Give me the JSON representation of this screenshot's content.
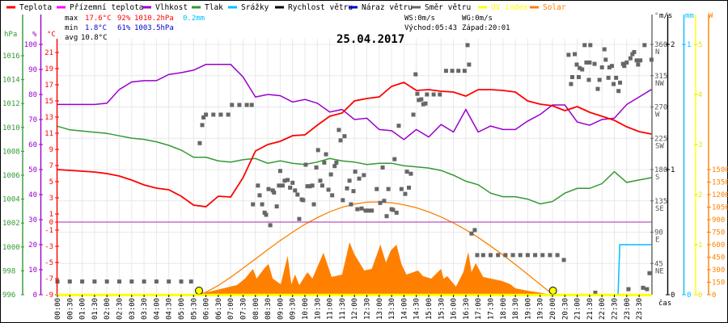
{
  "legend": [
    {
      "label": "Teplota",
      "color": "#ff0000"
    },
    {
      "label": "Přízemní teplota",
      "color": "#ff00ff"
    },
    {
      "label": "Vlhkost",
      "color": "#9900cc"
    },
    {
      "label": "Tlak",
      "color": "#339933"
    },
    {
      "label": "Srážky",
      "color": "#00bfff"
    },
    {
      "label": "Rychlost větru",
      "color": "#000000"
    },
    {
      "label": "Náraz větru",
      "color": "#0000cc"
    },
    {
      "label": "Směr větru",
      "color": "#666666"
    },
    {
      "label": "UV index",
      "color": "#ffff00"
    },
    {
      "label": "Solar",
      "color": "#ff8000"
    }
  ],
  "stats": {
    "max_label": "max",
    "max_temp": "17.6°C",
    "max_hum": "92%",
    "max_press": "1010.2hPa",
    "max_rain": "0.2mm",
    "min_label": "min",
    "min_temp": "1.8°C",
    "min_hum": "61%",
    "min_press": "1003.5hPa",
    "avg_label": "avg",
    "avg_temp": "10.8°C",
    "ws": "WS:0m/s",
    "wg": "WG:0m/s",
    "sunrise": "Východ:05:43",
    "sunset": "Západ:20:01"
  },
  "chart_data": {
    "type": "line",
    "title": "25.04.2017",
    "xlabel": "čas",
    "x_ticks": [
      "00:00",
      "00:30",
      "01:00",
      "01:30",
      "02:00",
      "02:30",
      "03:00",
      "03:30",
      "04:00",
      "04:30",
      "05:00",
      "05:30",
      "06:00",
      "06:30",
      "07:00",
      "07:30",
      "08:00",
      "08:30",
      "09:00",
      "09:30",
      "10:00",
      "10:30",
      "11:00",
      "11:30",
      "12:00",
      "12:30",
      "13:00",
      "13:30",
      "14:00",
      "14:30",
      "15:00",
      "15:30",
      "16:00",
      "16:30",
      "17:00",
      "17:30",
      "18:00",
      "18:30",
      "19:00",
      "19:30",
      "20:00",
      "20:30",
      "21:00",
      "21:30",
      "22:00",
      "22:30",
      "23:00",
      "23:30"
    ],
    "xlim_hours": [
      0,
      24
    ],
    "axes": {
      "pressure": {
        "label": "hPa",
        "ticks": [
          996,
          998,
          1000,
          1002,
          1004,
          1006,
          1008,
          1010,
          1012,
          1014,
          1016
        ],
        "range": [
          996,
          1016.9
        ]
      },
      "humidity": {
        "label": "%",
        "ticks": [
          0,
          10,
          20,
          30,
          40,
          50,
          60,
          70,
          80,
          90,
          100
        ],
        "range": [
          0,
          100
        ]
      },
      "temperature": {
        "label": "°C",
        "ticks": [
          -9,
          -7,
          -5,
          -3,
          -1,
          0,
          1,
          3,
          5,
          7,
          9,
          11,
          13,
          15,
          17,
          19,
          21
        ],
        "range": [
          -9,
          22
        ]
      },
      "direction": {
        "label": "°",
        "ticks": [
          [
            "45",
            "NE"
          ],
          [
            "90",
            "E"
          ],
          [
            "135",
            "SE"
          ],
          [
            "180",
            "S"
          ],
          [
            "225",
            "SW"
          ],
          [
            "270",
            "W"
          ],
          [
            "315",
            "NW"
          ],
          [
            "360",
            "N"
          ]
        ],
        "range": [
          0,
          360
        ]
      },
      "wind": {
        "label": "m/s",
        "ticks": [
          0,
          1,
          2
        ],
        "range": [
          0,
          2
        ]
      },
      "rain": {
        "label": "mm",
        "ticks": [
          0,
          1
        ],
        "range": [
          0,
          1
        ]
      },
      "uv": {
        "label": "",
        "ticks": [
          0,
          1,
          2,
          3,
          4,
          5
        ],
        "range": [
          0,
          5
        ]
      },
      "solar": {
        "label": "W",
        "ticks": [
          0,
          150,
          300,
          450,
          600,
          750,
          900,
          1050,
          1200,
          1350,
          1500
        ],
        "range": [
          0,
          3000
        ]
      }
    },
    "series": {
      "temperature": [
        6.5,
        6.4,
        6.3,
        6.2,
        6.0,
        5.7,
        5.2,
        4.6,
        4.2,
        4.0,
        3.2,
        2.1,
        1.9,
        3.2,
        3.1,
        5.5,
        8.8,
        9.6,
        10.0,
        10.7,
        10.8,
        12.0,
        13.1,
        13.5,
        15.0,
        15.3,
        15.5,
        16.8,
        17.3,
        16.3,
        16.4,
        16.2,
        16.1,
        15.6,
        16.4,
        16.4,
        16.3,
        16.1,
        15.0,
        14.6,
        14.4,
        13.8,
        14.3,
        13.6,
        13.1,
        12.6,
        11.8,
        11.2,
        10.9
      ],
      "ground_temperature": [
        [
          0,
          0
        ],
        [
          24,
          0
        ]
      ],
      "humidity": [
        76,
        76,
        76,
        76,
        76.5,
        82,
        85,
        85.5,
        85.5,
        88,
        88.7,
        89.7,
        92,
        92,
        92,
        87,
        79,
        80,
        79.5,
        77,
        78,
        76.5,
        73,
        74,
        70,
        70.5,
        66,
        65.5,
        62,
        66,
        63,
        68,
        65,
        74,
        65,
        67.4,
        66,
        66,
        69.4,
        72,
        75.8,
        75.8,
        69,
        67.7,
        70,
        70.5,
        76,
        79,
        82
      ],
      "pressure": [
        1010.1,
        1009.8,
        1009.7,
        1009.6,
        1009.5,
        1009.3,
        1009.1,
        1009.0,
        1008.8,
        1008.5,
        1008.1,
        1007.5,
        1007.5,
        1007.2,
        1007.1,
        1007.3,
        1007.4,
        1007.0,
        1007.2,
        1007.0,
        1006.9,
        1007.1,
        1007.4,
        1007.2,
        1007.1,
        1006.9,
        1007.0,
        1007.0,
        1006.8,
        1006.7,
        1006.6,
        1006.4,
        1006.0,
        1005.5,
        1005.2,
        1004.5,
        1004.2,
        1004.2,
        1004.0,
        1003.6,
        1003.8,
        1004.5,
        1004.9,
        1004.9,
        1005.3,
        1006.3,
        1005.4,
        1005.6,
        1005.8
      ],
      "rain": [
        [
          0,
          0
        ],
        [
          22.65,
          0
        ],
        [
          22.72,
          0.2
        ],
        [
          24,
          0.2
        ]
      ],
      "wind_speed": [
        [
          0,
          0
        ],
        [
          24,
          0
        ]
      ],
      "wind_gust": [
        [
          0,
          0
        ],
        [
          24,
          0
        ]
      ],
      "uv_index": [
        [
          0,
          0
        ],
        [
          24,
          0
        ]
      ],
      "solar": [
        [
          5.75,
          0
        ],
        [
          5.85,
          15
        ],
        [
          7.25,
          116
        ],
        [
          7.58,
          194
        ],
        [
          7.9,
          310
        ],
        [
          8.05,
          194
        ],
        [
          8.37,
          320
        ],
        [
          8.53,
          368
        ],
        [
          8.7,
          194
        ],
        [
          9.02,
          126
        ],
        [
          9.3,
          465
        ],
        [
          9.45,
          126
        ],
        [
          9.6,
          242
        ],
        [
          9.77,
          116
        ],
        [
          10.1,
          271
        ],
        [
          10.3,
          194
        ],
        [
          10.75,
          503
        ],
        [
          11.08,
          213
        ],
        [
          11.5,
          242
        ],
        [
          11.8,
          629
        ],
        [
          12.0,
          484
        ],
        [
          12.4,
          290
        ],
        [
          12.7,
          310
        ],
        [
          13.05,
          600
        ],
        [
          13.27,
          387
        ],
        [
          13.47,
          532
        ],
        [
          13.7,
          600
        ],
        [
          13.9,
          368
        ],
        [
          14.1,
          242
        ],
        [
          14.57,
          290
        ],
        [
          14.77,
          223
        ],
        [
          15.1,
          194
        ],
        [
          15.5,
          310
        ],
        [
          15.6,
          194
        ],
        [
          15.75,
          223
        ],
        [
          16.1,
          97
        ],
        [
          16.4,
          271
        ],
        [
          16.6,
          513
        ],
        [
          16.73,
          271
        ],
        [
          16.9,
          378
        ],
        [
          17.2,
          213
        ],
        [
          17.95,
          165
        ],
        [
          18.3,
          126
        ],
        [
          18.5,
          77
        ],
        [
          19.0,
          48
        ],
        [
          19.67,
          15
        ],
        [
          19.9,
          0
        ]
      ],
      "solar_clear_sky": [
        [
          5.72,
          0
        ],
        [
          6,
          30
        ],
        [
          6.5,
          111
        ],
        [
          7,
          210
        ],
        [
          7.5,
          318
        ],
        [
          8,
          429
        ],
        [
          8.5,
          541
        ],
        [
          9,
          649
        ],
        [
          9.5,
          750
        ],
        [
          10,
          844
        ],
        [
          10.5,
          924
        ],
        [
          11,
          994
        ],
        [
          11.5,
          1048
        ],
        [
          12,
          1087
        ],
        [
          12.5,
          1109
        ],
        [
          13,
          1113
        ],
        [
          13.5,
          1102
        ],
        [
          14,
          1078
        ],
        [
          14.5,
          1042
        ],
        [
          15,
          993
        ],
        [
          15.5,
          932
        ],
        [
          16,
          860
        ],
        [
          16.5,
          778
        ],
        [
          17,
          686
        ],
        [
          17.5,
          584
        ],
        [
          18,
          476
        ],
        [
          18.5,
          363
        ],
        [
          19,
          245
        ],
        [
          19.5,
          126
        ],
        [
          20.02,
          0
        ]
      ],
      "wind_direction": [
        [
          0,
          19
        ],
        [
          0.5,
          19
        ],
        [
          1,
          19
        ],
        [
          1.5,
          19
        ],
        [
          2,
          19
        ],
        [
          2.5,
          19
        ],
        [
          3,
          19
        ],
        [
          3.5,
          19
        ],
        [
          4,
          19
        ],
        [
          4.5,
          19
        ],
        [
          5,
          19
        ],
        [
          5.4,
          19
        ],
        [
          5.75,
          218
        ],
        [
          5.85,
          244
        ],
        [
          5.9,
          255
        ],
        [
          6.0,
          259
        ],
        [
          6.3,
          259
        ],
        [
          6.6,
          259
        ],
        [
          6.9,
          259
        ],
        [
          7.05,
          273
        ],
        [
          7.35,
          273
        ],
        [
          7.65,
          273
        ],
        [
          7.85,
          273
        ],
        [
          7.9,
          130
        ],
        [
          8.1,
          157
        ],
        [
          8.17,
          143
        ],
        [
          8.27,
          130
        ],
        [
          8.37,
          118
        ],
        [
          8.43,
          115
        ],
        [
          8.53,
          152
        ],
        [
          8.6,
          100
        ],
        [
          8.7,
          150
        ],
        [
          8.75,
          147
        ],
        [
          8.86,
          127
        ],
        [
          8.95,
          157
        ],
        [
          9.0,
          178
        ],
        [
          9.1,
          157
        ],
        [
          9.18,
          164
        ],
        [
          9.3,
          165
        ],
        [
          9.4,
          154
        ],
        [
          9.5,
          161
        ],
        [
          9.6,
          150
        ],
        [
          9.7,
          144
        ],
        [
          9.77,
          109
        ],
        [
          9.87,
          137
        ],
        [
          9.93,
          136
        ],
        [
          10.03,
          187
        ],
        [
          10.1,
          156
        ],
        [
          10.2,
          156
        ],
        [
          10.3,
          157
        ],
        [
          10.36,
          130
        ],
        [
          10.46,
          183
        ],
        [
          10.53,
          208
        ],
        [
          10.62,
          164
        ],
        [
          10.7,
          157
        ],
        [
          10.78,
          190
        ],
        [
          10.85,
          202
        ],
        [
          10.95,
          151
        ],
        [
          11.05,
          173
        ],
        [
          11.1,
          143
        ],
        [
          11.2,
          185
        ],
        [
          11.27,
          190
        ],
        [
          11.37,
          237
        ],
        [
          11.44,
          222
        ],
        [
          11.53,
          136
        ],
        [
          11.6,
          228
        ],
        [
          11.7,
          153
        ],
        [
          11.8,
          164
        ],
        [
          11.86,
          130
        ],
        [
          11.96,
          149
        ],
        [
          12.03,
          177
        ],
        [
          12.12,
          123
        ],
        [
          12.19,
          167
        ],
        [
          12.29,
          124
        ],
        [
          12.38,
          172
        ],
        [
          12.45,
          121
        ],
        [
          12.55,
          121
        ],
        [
          12.7,
          121
        ],
        [
          12.9,
          152
        ],
        [
          13.04,
          132
        ],
        [
          13.14,
          183
        ],
        [
          13.2,
          135
        ],
        [
          13.3,
          113
        ],
        [
          13.37,
          152
        ],
        [
          13.5,
          123
        ],
        [
          13.56,
          122
        ],
        [
          13.62,
          195
        ],
        [
          13.7,
          118
        ],
        [
          13.79,
          243
        ],
        [
          13.9,
          152
        ],
        [
          14.05,
          145
        ],
        [
          14.12,
          177
        ],
        [
          14.2,
          154
        ],
        [
          14.28,
          174
        ],
        [
          14.38,
          259
        ],
        [
          14.47,
          317
        ],
        [
          14.54,
          289
        ],
        [
          14.6,
          280
        ],
        [
          14.7,
          281
        ],
        [
          14.78,
          274
        ],
        [
          14.87,
          275
        ],
        [
          14.93,
          288
        ],
        [
          15.2,
          288
        ],
        [
          15.45,
          288
        ],
        [
          15.7,
          322
        ],
        [
          15.95,
          322
        ],
        [
          16.2,
          322
        ],
        [
          16.45,
          322
        ],
        [
          16.57,
          359
        ],
        [
          16.63,
          331
        ],
        [
          16.73,
          88
        ],
        [
          16.86,
          93
        ],
        [
          16.96,
          57
        ],
        [
          17.2,
          57
        ],
        [
          17.5,
          57
        ],
        [
          17.8,
          57
        ],
        [
          18.1,
          57
        ],
        [
          18.4,
          57
        ],
        [
          18.7,
          57
        ],
        [
          19.0,
          57
        ],
        [
          19.3,
          57
        ],
        [
          19.6,
          57
        ],
        [
          19.9,
          57
        ],
        [
          20.2,
          57
        ],
        [
          20.46,
          50
        ],
        [
          20.65,
          345
        ],
        [
          20.75,
          303
        ],
        [
          20.8,
          313
        ],
        [
          20.9,
          346
        ],
        [
          20.98,
          331
        ],
        [
          21.06,
          313
        ],
        [
          21.1,
          326
        ],
        [
          21.2,
          324
        ],
        [
          21.3,
          359
        ],
        [
          21.37,
          334
        ],
        [
          21.47,
          309
        ],
        [
          21.5,
          334
        ],
        [
          21.53,
          359
        ],
        [
          21.7,
          332
        ],
        [
          21.73,
          3
        ],
        [
          21.83,
          296
        ],
        [
          21.9,
          309
        ],
        [
          22.0,
          327
        ],
        [
          22.1,
          353
        ],
        [
          22.15,
          338
        ],
        [
          22.26,
          312
        ],
        [
          22.3,
          327
        ],
        [
          22.4,
          329
        ],
        [
          22.47,
          303
        ],
        [
          22.57,
          312
        ],
        [
          22.67,
          293
        ],
        [
          22.73,
          305
        ],
        [
          22.85,
          332
        ],
        [
          22.9,
          329
        ],
        [
          23.0,
          334
        ],
        [
          23.07,
          8
        ],
        [
          23.15,
          340
        ],
        [
          23.23,
          346
        ],
        [
          23.3,
          349
        ],
        [
          23.4,
          337
        ],
        [
          23.46,
          331
        ],
        [
          23.55,
          337
        ],
        [
          23.66,
          10
        ],
        [
          23.72,
          359
        ],
        [
          23.82,
          8
        ],
        [
          23.92,
          31
        ],
        [
          24.0,
          338
        ]
      ],
      "sun_events": [
        [
          5.72,
          "sunrise"
        ],
        [
          20.02,
          "sunset"
        ]
      ]
    }
  }
}
